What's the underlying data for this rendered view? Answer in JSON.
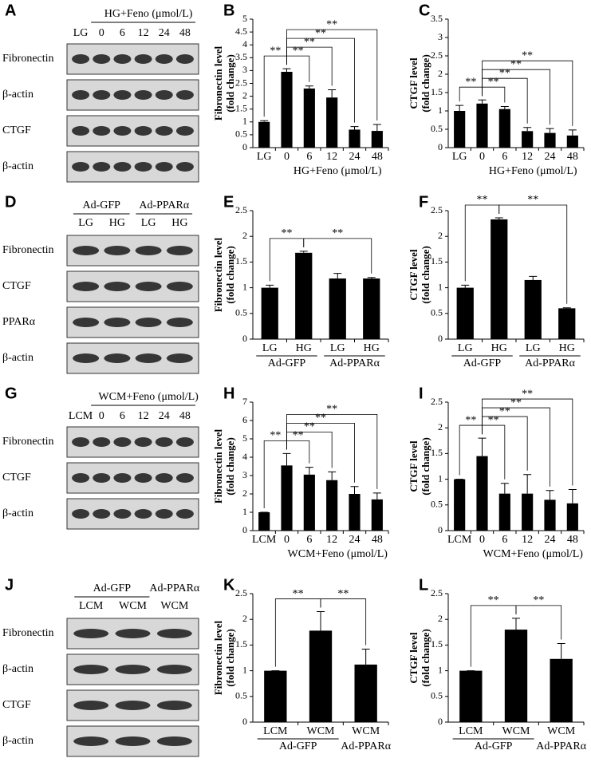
{
  "chart_data": [
    {
      "type": "bar",
      "label": "B",
      "ylabel": [
        "Fibronectin level",
        "(fold change)"
      ],
      "categories": [
        "LG",
        "0",
        "6",
        "12",
        "24",
        "48"
      ],
      "values": [
        1,
        2.95,
        2.3,
        1.95,
        0.7,
        0.65
      ],
      "errors": [
        0.05,
        0.12,
        0.1,
        0.3,
        0.12,
        0.25
      ],
      "color": "#000000",
      "ylim": [
        0,
        5
      ],
      "yticks": [
        0,
        0.5,
        1,
        1.5,
        2,
        2.5,
        3,
        3.5,
        4,
        4.5,
        5
      ],
      "xlabel": "HG+Feno (μmol/L)",
      "brackets": [
        {
          "pair": [
            0,
            1
          ],
          "label": "**"
        },
        {
          "pair": [
            1,
            2
          ],
          "label": "**"
        },
        {
          "pair": [
            1,
            3
          ],
          "label": "**"
        },
        {
          "pair": [
            1,
            4
          ],
          "label": "**"
        },
        {
          "pair": [
            1,
            5
          ],
          "label": "**"
        }
      ]
    },
    {
      "type": "bar",
      "label": "C",
      "ylabel": [
        "CTGF level",
        "(fold change)"
      ],
      "categories": [
        "LG",
        "0",
        "6",
        "12",
        "24",
        "48"
      ],
      "values": [
        1,
        1.2,
        1.05,
        0.45,
        0.4,
        0.33
      ],
      "errors": [
        0.15,
        0.1,
        0.07,
        0.1,
        0.12,
        0.15
      ],
      "color": "#000000",
      "ylim": [
        0,
        3.5
      ],
      "yticks": [
        0,
        0.5,
        1,
        1.5,
        2,
        2.5,
        3,
        3.5
      ],
      "xlabel": "HG+Feno (μmol/L)",
      "brackets": [
        {
          "pair": [
            0,
            1
          ],
          "label": "**"
        },
        {
          "pair": [
            1,
            2
          ],
          "label": "**"
        },
        {
          "pair": [
            1,
            3
          ],
          "label": "**"
        },
        {
          "pair": [
            1,
            4
          ],
          "label": "**"
        },
        {
          "pair": [
            1,
            5
          ],
          "label": "**"
        }
      ]
    },
    {
      "type": "bar",
      "label": "E",
      "ylabel": [
        "Fibronectin level",
        "(fold change)"
      ],
      "categories": [
        "LG",
        "HG",
        "LG",
        "HG"
      ],
      "values": [
        1,
        1.68,
        1.18,
        1.18
      ],
      "errors": [
        0.05,
        0.03,
        0.1,
        0.02
      ],
      "color": "#000000",
      "ylim": [
        0,
        2.5
      ],
      "yticks": [
        0,
        0.5,
        1,
        1.5,
        2,
        2.5
      ],
      "groups": [
        {
          "label": "Ad-GFP",
          "span": [
            0,
            1
          ]
        },
        {
          "label": "Ad-PPARα",
          "span": [
            2,
            3
          ]
        }
      ],
      "brackets": [
        {
          "pair": [
            0,
            1
          ],
          "label": "**"
        },
        {
          "pair": [
            1,
            3
          ],
          "label": "**"
        }
      ]
    },
    {
      "type": "bar",
      "label": "F",
      "ylabel": [
        "CTGF level",
        "(fold change)"
      ],
      "categories": [
        "LG",
        "HG",
        "LG",
        "HG"
      ],
      "values": [
        1,
        2.33,
        1.15,
        0.6
      ],
      "errors": [
        0.05,
        0.03,
        0.07,
        0.01
      ],
      "color": "#000000",
      "ylim": [
        0,
        2.5
      ],
      "yticks": [
        0,
        0.5,
        1,
        1.5,
        2,
        2.5
      ],
      "groups": [
        {
          "label": "Ad-GFP",
          "span": [
            0,
            1
          ]
        },
        {
          "label": "Ad-PPARα",
          "span": [
            2,
            3
          ]
        }
      ],
      "brackets": [
        {
          "pair": [
            0,
            1
          ],
          "label": "**"
        },
        {
          "pair": [
            1,
            3
          ],
          "label": "**"
        }
      ]
    },
    {
      "type": "bar",
      "label": "H",
      "ylabel": [
        "Fibronectin level",
        "(fold change)"
      ],
      "categories": [
        "LCM",
        "0",
        "6",
        "12",
        "24",
        "48"
      ],
      "values": [
        1,
        3.55,
        3.05,
        2.75,
        2.0,
        1.7
      ],
      "errors": [
        0,
        0.65,
        0.4,
        0.45,
        0.4,
        0.35
      ],
      "color": "#000000",
      "ylim": [
        0,
        7
      ],
      "yticks": [
        0,
        1,
        2,
        3,
        4,
        5,
        6,
        7
      ],
      "xlabel": "WCM+Feno (μmol/L)",
      "brackets": [
        {
          "pair": [
            0,
            1
          ],
          "label": "**"
        },
        {
          "pair": [
            1,
            2
          ],
          "label": "**"
        },
        {
          "pair": [
            1,
            3
          ],
          "label": "**"
        },
        {
          "pair": [
            1,
            4
          ],
          "label": "**"
        },
        {
          "pair": [
            1,
            5
          ],
          "label": "**"
        }
      ]
    },
    {
      "type": "bar",
      "label": "I",
      "ylabel": [
        "CTGF level",
        "(fold change)"
      ],
      "categories": [
        "LCM",
        "0",
        "6",
        "12",
        "24",
        "48"
      ],
      "values": [
        1,
        1.45,
        0.72,
        0.72,
        0.6,
        0.53
      ],
      "errors": [
        0,
        0.35,
        0.2,
        0.37,
        0.18,
        0.27
      ],
      "color": "#000000",
      "ylim": [
        0,
        2.5
      ],
      "yticks": [
        0,
        0.5,
        1,
        1.5,
        2,
        2.5
      ],
      "xlabel": "WCM+Feno (μmol/L)",
      "brackets": [
        {
          "pair": [
            0,
            1
          ],
          "label": "**"
        },
        {
          "pair": [
            1,
            2
          ],
          "label": "**"
        },
        {
          "pair": [
            1,
            3
          ],
          "label": "**"
        },
        {
          "pair": [
            1,
            4
          ],
          "label": "**"
        },
        {
          "pair": [
            1,
            5
          ],
          "label": "**"
        }
      ]
    },
    {
      "type": "bar",
      "label": "K",
      "ylabel": [
        "Fibronectin level",
        "(fold change)"
      ],
      "categories": [
        "LCM",
        "WCM",
        "WCM"
      ],
      "values": [
        1,
        1.78,
        1.12
      ],
      "errors": [
        0,
        0.37,
        0.3
      ],
      "color": "#000000",
      "ylim": [
        0,
        2.5
      ],
      "yticks": [
        0,
        0.5,
        1,
        1.5,
        2,
        2.5
      ],
      "groups": [
        {
          "label": "Ad-GFP",
          "span": [
            0,
            1
          ]
        },
        {
          "label": "Ad-PPARα",
          "span": [
            2,
            2
          ]
        }
      ],
      "brackets": [
        {
          "pair": [
            0,
            1
          ],
          "label": "**"
        },
        {
          "pair": [
            1,
            2
          ],
          "label": "**"
        }
      ]
    },
    {
      "type": "bar",
      "label": "L",
      "ylabel": [
        "CTGF level",
        "(fold change)"
      ],
      "categories": [
        "LCM",
        "WCM",
        "WCM"
      ],
      "values": [
        1,
        1.8,
        1.23
      ],
      "errors": [
        0,
        0.22,
        0.3
      ],
      "color": "#000000",
      "ylim": [
        0,
        2.5
      ],
      "yticks": [
        0,
        0.5,
        1,
        1.5,
        2,
        2.5
      ],
      "groups": [
        {
          "label": "Ad-GFP",
          "span": [
            0,
            1
          ]
        },
        {
          "label": "Ad-PPARα",
          "span": [
            2,
            2
          ]
        }
      ],
      "brackets": [
        {
          "pair": [
            0,
            1
          ],
          "label": "**"
        },
        {
          "pair": [
            1,
            2
          ],
          "label": "**"
        }
      ]
    }
  ],
  "blots": [
    {
      "label": "A",
      "header": "HG+Feno (μmol/L)",
      "lanes": [
        "LG",
        "0",
        "6",
        "12",
        "24",
        "48"
      ],
      "rows": [
        "Fibronectin",
        "β-actin",
        "CTGF",
        "β-actin"
      ]
    },
    {
      "label": "D",
      "groups": [
        {
          "label": "Ad-GFP",
          "lanes": [
            "LG",
            "HG"
          ]
        },
        {
          "label": "Ad-PPARα",
          "lanes": [
            "LG",
            "HG"
          ]
        }
      ],
      "rows": [
        "Fibronectin",
        "CTGF",
        "PPARα",
        "β-actin"
      ]
    },
    {
      "label": "G",
      "header": "WCM+Feno (μmol/L)",
      "lanes": [
        "LCM",
        "0",
        "6",
        "12",
        "24",
        "48"
      ],
      "rows": [
        "Fibronectin",
        "CTGF",
        "β-actin"
      ]
    },
    {
      "label": "J",
      "groups": [
        {
          "label": "Ad-GFP",
          "lanes": [
            "LCM",
            "WCM"
          ]
        },
        {
          "label": "Ad-PPARα",
          "lanes": [
            "WCM"
          ]
        }
      ],
      "rows": [
        "Fibronectin",
        "β-actin",
        "CTGF",
        "β-actin"
      ]
    }
  ]
}
